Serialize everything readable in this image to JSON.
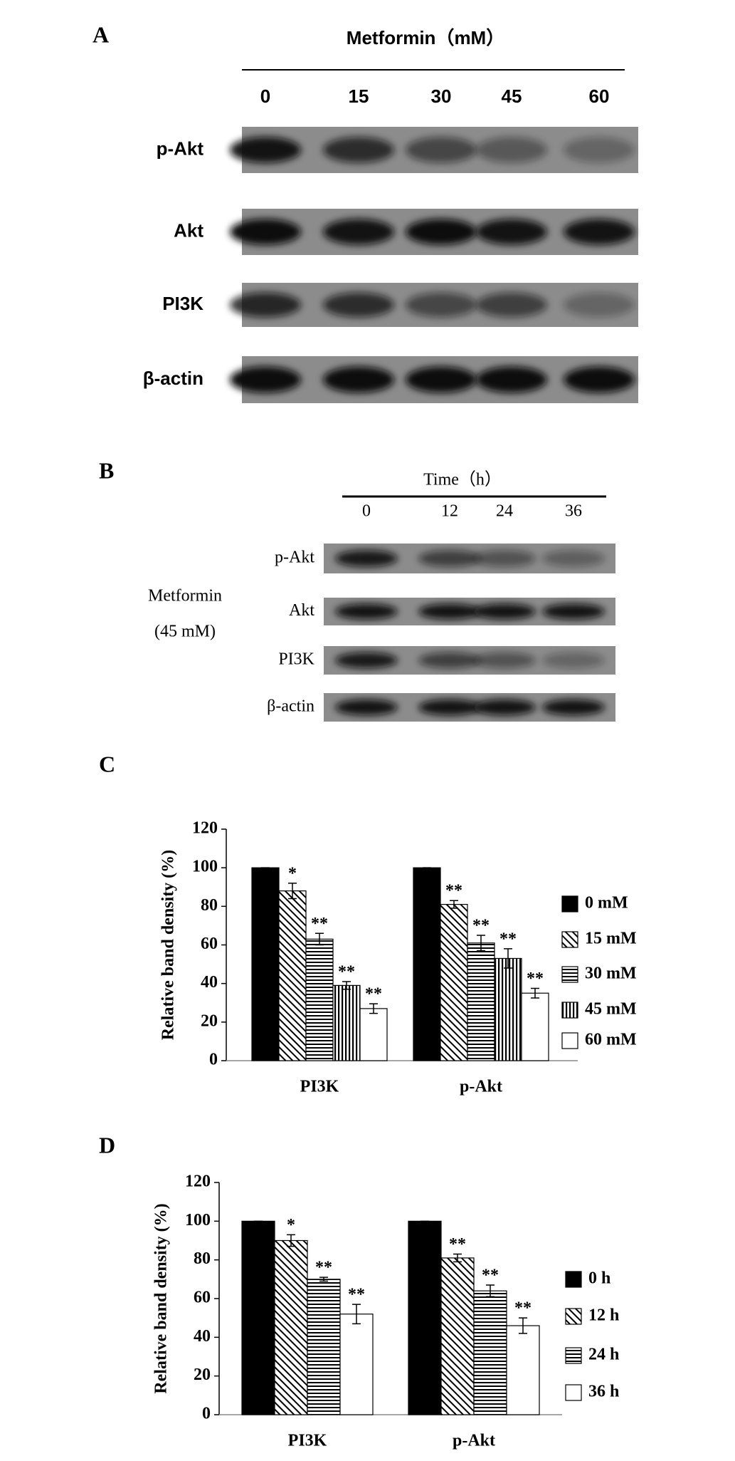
{
  "panels": {
    "A": {
      "letter": "A",
      "title": "Metformin（mM）",
      "lanes": [
        "0",
        "15",
        "30",
        "45",
        "60"
      ],
      "rows": [
        "p-Akt",
        "Akt",
        "PI3K",
        "β-actin"
      ]
    },
    "B": {
      "letter": "B",
      "title": "Time（h）",
      "lanes": [
        "0",
        "12",
        "24",
        "36"
      ],
      "rows": [
        "p-Akt",
        "Akt",
        "PI3K",
        "β-actin"
      ],
      "side_label": [
        "Metformin",
        "(45 mM)"
      ]
    }
  },
  "chart_data": [
    {
      "type": "bar",
      "panel": "C",
      "y_label": "Relative band density (%)",
      "categories": [
        "PI3K",
        "p-Akt"
      ],
      "ylim": [
        0,
        120
      ],
      "yticks": [
        0,
        20,
        40,
        60,
        80,
        100,
        120
      ],
      "series": [
        {
          "name": "0 mM",
          "pattern": "solid",
          "values": [
            100,
            100
          ],
          "errors": [
            0,
            0
          ],
          "stars": [
            null,
            null
          ]
        },
        {
          "name": "15 mM",
          "pattern": "diagonal",
          "values": [
            88,
            81
          ],
          "errors": [
            4,
            2
          ],
          "stars": [
            "*",
            "**"
          ]
        },
        {
          "name": "30 mM",
          "pattern": "horizontal",
          "values": [
            63,
            61
          ],
          "errors": [
            3,
            4
          ],
          "stars": [
            "**",
            "**"
          ]
        },
        {
          "name": "45 mM",
          "pattern": "vertical",
          "values": [
            39,
            53
          ],
          "errors": [
            2,
            5
          ],
          "stars": [
            "**",
            "**"
          ]
        },
        {
          "name": "60 mM",
          "pattern": "none",
          "values": [
            27,
            35
          ],
          "errors": [
            2.5,
            2.5
          ],
          "stars": [
            "**",
            "**"
          ]
        }
      ]
    },
    {
      "type": "bar",
      "panel": "D",
      "y_label": "Relative band density (%)",
      "categories": [
        "PI3K",
        "p-Akt"
      ],
      "ylim": [
        0,
        120
      ],
      "yticks": [
        0,
        20,
        40,
        60,
        80,
        100,
        120
      ],
      "series": [
        {
          "name": "0 h",
          "pattern": "solid",
          "values": [
            100,
            100
          ],
          "errors": [
            0,
            0
          ],
          "stars": [
            null,
            null
          ]
        },
        {
          "name": "12 h",
          "pattern": "diagonal",
          "values": [
            90,
            81
          ],
          "errors": [
            3,
            2
          ],
          "stars": [
            "*",
            "**"
          ]
        },
        {
          "name": "24 h",
          "pattern": "horizontal",
          "values": [
            70,
            64
          ],
          "errors": [
            1,
            3
          ],
          "stars": [
            "**",
            "**"
          ]
        },
        {
          "name": "36 h",
          "pattern": "none",
          "values": [
            52,
            46
          ],
          "errors": [
            5,
            4
          ],
          "stars": [
            "**",
            "**"
          ]
        }
      ]
    }
  ]
}
